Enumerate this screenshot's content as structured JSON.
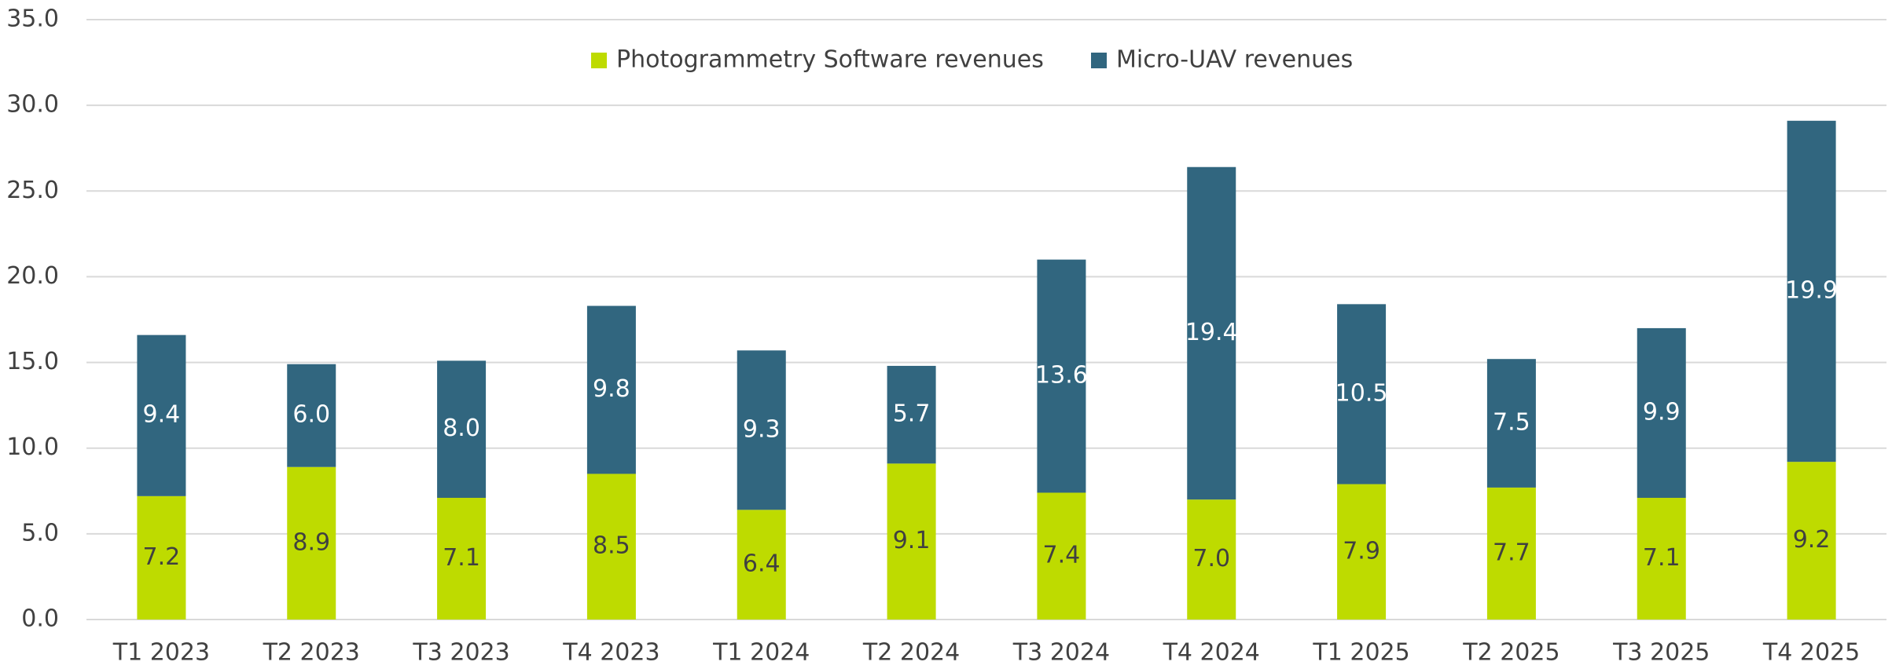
{
  "chart_data": {
    "type": "stacked_bar",
    "categories": [
      "T1 2023",
      "T2 2023",
      "T3 2023",
      "T4 2023",
      "T1 2024",
      "T2 2024",
      "T3 2024",
      "T4 2024",
      "T1 2025",
      "T2 2025",
      "T3 2025",
      "T4 2025"
    ],
    "series": [
      {
        "name": "Photogrammetry Software revenues",
        "color": "#bedb00",
        "values": [
          7.2,
          8.9,
          7.1,
          8.5,
          6.4,
          9.1,
          7.4,
          7.0,
          7.9,
          7.7,
          7.1,
          9.2
        ],
        "value_labels": [
          "7.2",
          "8.9",
          "7.1",
          "8.5",
          "6.4",
          "9.1",
          "7.4",
          "7.0",
          "7.9",
          "7.7",
          "7.1",
          "9.2"
        ]
      },
      {
        "name": "Micro-UAV revenues",
        "color": "#31667f",
        "values": [
          9.4,
          6.0,
          8.0,
          9.8,
          9.3,
          5.7,
          13.6,
          19.4,
          10.5,
          7.5,
          9.9,
          19.9
        ],
        "value_labels": [
          "9.4",
          "6.0",
          "8.0",
          "9.8",
          "9.3",
          "5.7",
          "13.6",
          "19.4",
          "10.5",
          "7.5",
          "9.9",
          "19.9"
        ]
      }
    ],
    "ylim": [
      0,
      35
    ],
    "yticks": [
      {
        "value": 0,
        "label": "0.0"
      },
      {
        "value": 5,
        "label": "5.0"
      },
      {
        "value": 10,
        "label": "10.0"
      },
      {
        "value": 15,
        "label": "15.0"
      },
      {
        "value": 20,
        "label": "20.0"
      },
      {
        "value": 25,
        "label": "25.0"
      },
      {
        "value": 30,
        "label": "30.0"
      },
      {
        "value": 35,
        "label": "35.0"
      }
    ],
    "grid": true,
    "legend": "top"
  }
}
